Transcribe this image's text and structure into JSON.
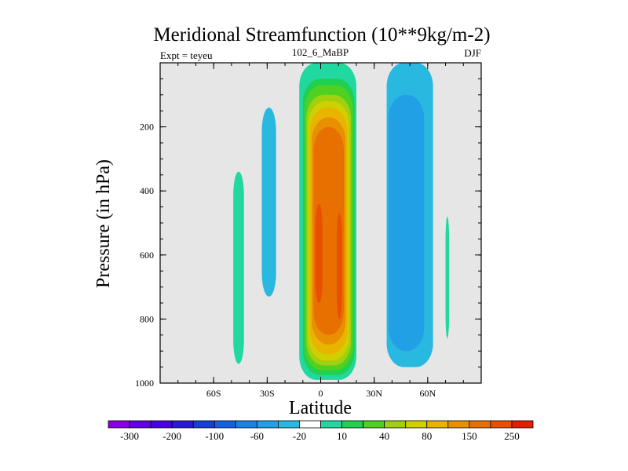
{
  "chart_data": {
    "type": "contour",
    "title": "Meridional Streamfunction (10**9kg/m-2)",
    "left_label": "Expt = teyeu",
    "center_label": "102_6_MaBP",
    "right_label": "DJF",
    "xlabel": "Latitude",
    "ylabel": "Pressure (in hPa)",
    "xlim": [
      -90,
      90
    ],
    "ylim": [
      0,
      1000
    ],
    "y_inverted": true,
    "x_ticks": [
      {
        "value": -60,
        "label": "60S"
      },
      {
        "value": -30,
        "label": "30S"
      },
      {
        "value": 0,
        "label": "0"
      },
      {
        "value": 30,
        "label": "30N"
      },
      {
        "value": 60,
        "label": "60N"
      }
    ],
    "y_ticks": [
      {
        "value": 200,
        "label": "200"
      },
      {
        "value": 400,
        "label": "400"
      },
      {
        "value": 600,
        "label": "600"
      },
      {
        "value": 800,
        "label": "800"
      },
      {
        "value": 1000,
        "label": "1000"
      }
    ],
    "background_color": "#e6e6e6",
    "colorbar": {
      "colors": [
        "#8a00e6",
        "#6400e6",
        "#4a00e0",
        "#2a1ad8",
        "#1440d8",
        "#1460e0",
        "#1a82e6",
        "#22a0e6",
        "#28b8e0",
        "#ffffff",
        "#20d8a0",
        "#20d050",
        "#50d020",
        "#a0d010",
        "#d0d000",
        "#e8b400",
        "#e89000",
        "#e87000",
        "#e85000",
        "#e02000"
      ],
      "labels": [
        {
          "after": 1,
          "text": "-300"
        },
        {
          "after": 3,
          "text": "-200"
        },
        {
          "after": 5,
          "text": "-100"
        },
        {
          "after": 7,
          "text": "-60"
        },
        {
          "after": 9,
          "text": "-20"
        },
        {
          "after": 11,
          "text": "10"
        },
        {
          "after": 13,
          "text": "40"
        },
        {
          "after": 15,
          "text": "80"
        },
        {
          "after": 17,
          "text": "150"
        },
        {
          "after": 19,
          "text": "250"
        }
      ]
    },
    "contour_regions": [
      {
        "name": "positive-cell-10",
        "fill": "#20d8a0",
        "lat": [
          -12,
          20
        ],
        "p": [
          0,
          990
        ]
      },
      {
        "name": "positive-cell-20",
        "fill": "#20d050",
        "lat": [
          -10,
          19
        ],
        "p": [
          50,
          975
        ]
      },
      {
        "name": "positive-cell-40",
        "fill": "#50d020",
        "lat": [
          -9,
          18
        ],
        "p": [
          70,
          960
        ]
      },
      {
        "name": "positive-cell-60",
        "fill": "#a0d010",
        "lat": [
          -8,
          17
        ],
        "p": [
          100,
          945
        ]
      },
      {
        "name": "positive-cell-80",
        "fill": "#d0d000",
        "lat": [
          -7,
          16
        ],
        "p": [
          120,
          930
        ]
      },
      {
        "name": "positive-cell-100",
        "fill": "#e8b400",
        "lat": [
          -6,
          15
        ],
        "p": [
          140,
          910
        ]
      },
      {
        "name": "positive-cell-150",
        "fill": "#e89000",
        "lat": [
          -5,
          14
        ],
        "p": [
          170,
          880
        ]
      },
      {
        "name": "positive-cell-200",
        "fill": "#e87000",
        "lat": [
          -4,
          13
        ],
        "p": [
          200,
          850
        ]
      },
      {
        "name": "positive-core-south-250",
        "fill": "#e85000",
        "lat": [
          -3,
          1
        ],
        "p": [
          440,
          750
        ]
      },
      {
        "name": "positive-core-north-250",
        "fill": "#e85000",
        "lat": [
          9,
          12
        ],
        "p": [
          470,
          800
        ]
      },
      {
        "name": "negative-cell-north-10",
        "fill": "#28b8e0",
        "lat": [
          37,
          63
        ],
        "p": [
          0,
          950
        ]
      },
      {
        "name": "negative-cell-north-20",
        "fill": "#22a0e6",
        "lat": [
          38,
          58
        ],
        "p": [
          100,
          900
        ]
      },
      {
        "name": "negative-cell-south-10",
        "fill": "#28b8e0",
        "lat": [
          -33,
          -25
        ],
        "p": [
          140,
          730
        ]
      },
      {
        "name": "positive-band-south-10",
        "fill": "#20d8a0",
        "lat": [
          -49,
          -43
        ],
        "p": [
          340,
          940
        ]
      },
      {
        "name": "positive-band-north-10",
        "fill": "#20d8a0",
        "lat": [
          70,
          72
        ],
        "p": [
          480,
          860
        ]
      }
    ]
  }
}
